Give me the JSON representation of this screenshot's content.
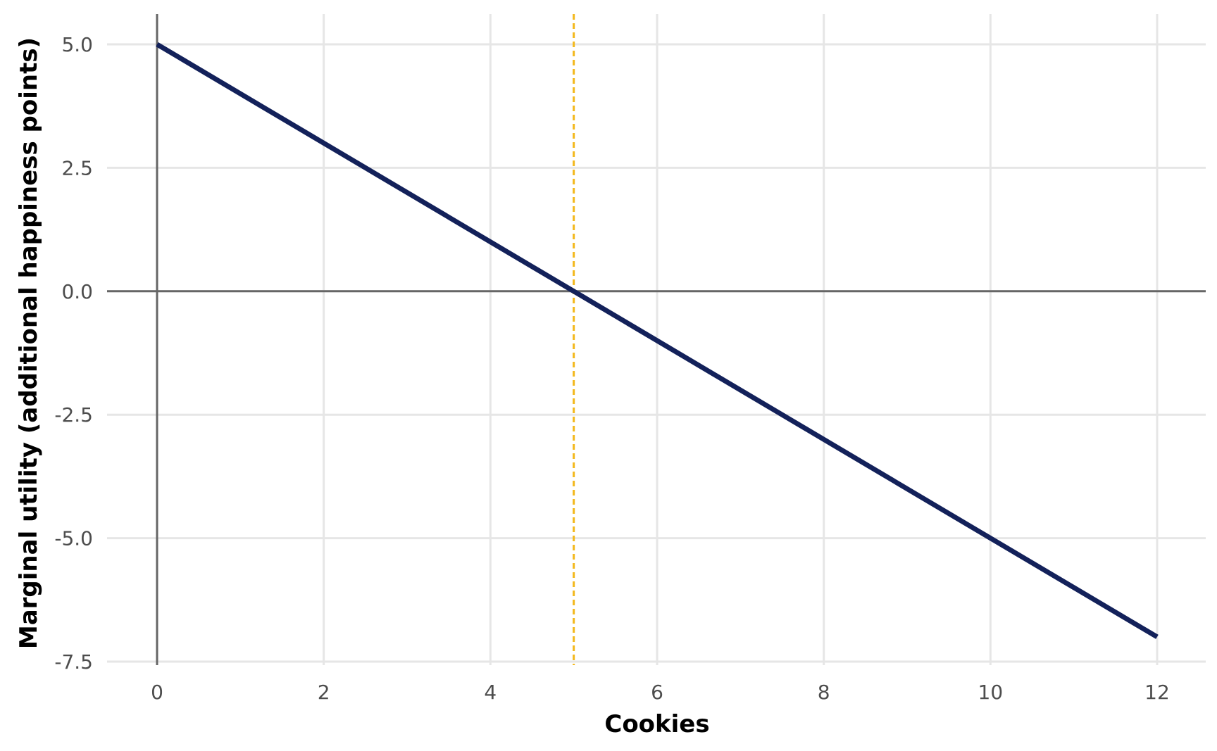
{
  "chart_data": {
    "type": "line",
    "title": "",
    "xlabel": "Cookies",
    "ylabel": "Marginal utility (additional happiness points)",
    "xlim": [
      0,
      12
    ],
    "ylim": [
      -7.5,
      5.0
    ],
    "x_ticks": [
      0,
      2,
      4,
      6,
      8,
      10,
      12
    ],
    "x_tick_labels": [
      "0",
      "2",
      "4",
      "6",
      "8",
      "10",
      "12"
    ],
    "y_ticks": [
      5.0,
      2.5,
      0.0,
      -2.5,
      -5.0,
      -7.5
    ],
    "y_tick_labels": [
      "5.0",
      "2.5",
      "0.0",
      "-2.5",
      "-5.0",
      "-7.5"
    ],
    "grid": true,
    "legend": "none",
    "series": [
      {
        "x": [
          0,
          12
        ],
        "y": [
          5,
          -7
        ],
        "color": "#13215a",
        "style": "solid"
      }
    ],
    "reference_lines": [
      {
        "orientation": "horizontal",
        "value": 0,
        "color": "#666666",
        "style": "solid"
      },
      {
        "orientation": "vertical",
        "value": 0,
        "color": "#666666",
        "style": "solid"
      },
      {
        "orientation": "vertical",
        "value": 5,
        "color": "#f3b81b",
        "style": "dashed"
      }
    ]
  }
}
